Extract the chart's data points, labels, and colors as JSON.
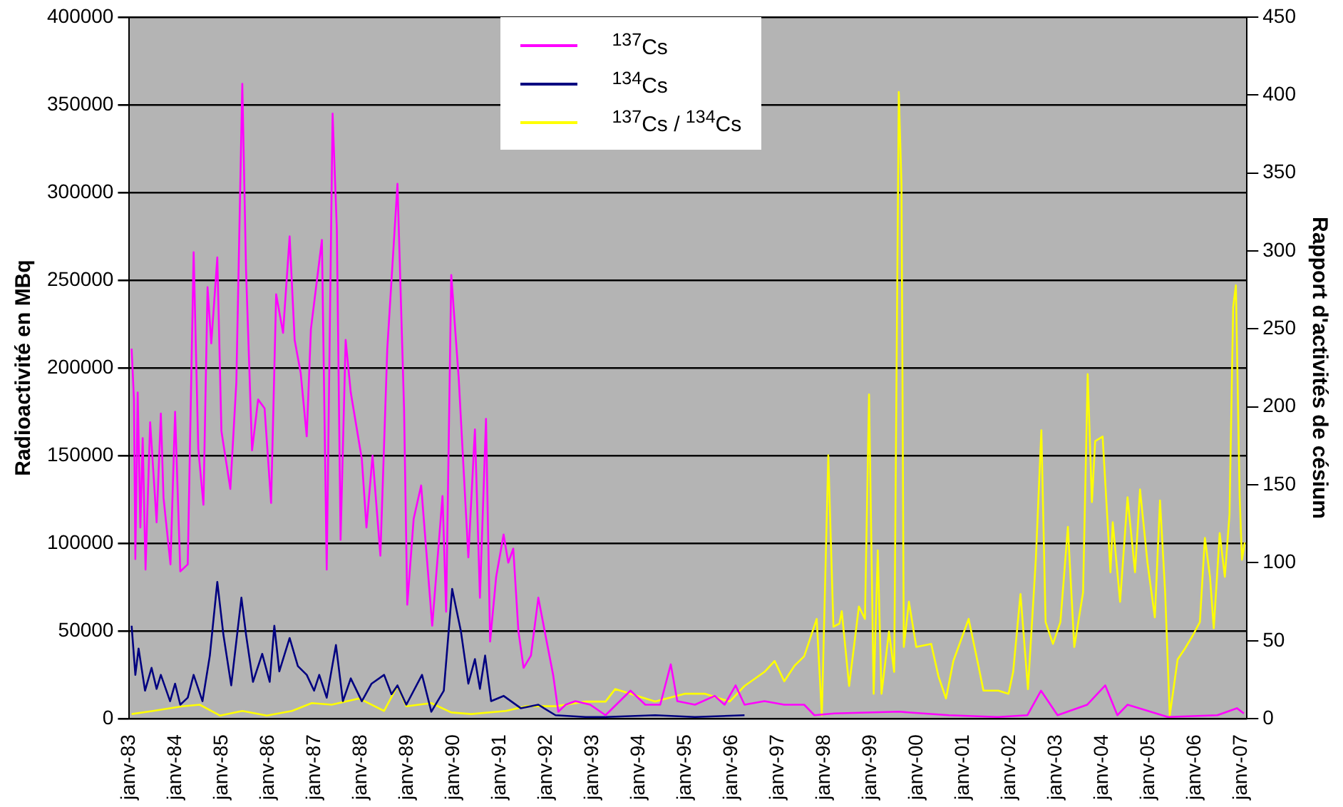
{
  "chart_data": {
    "type": "line",
    "ylabel": "Radioactivité en MBq",
    "y2label": "Rapport d'activités de césium",
    "xlim": [
      "1983-01",
      "2007-02-17"
    ],
    "xticks": [
      {
        "value": "1983-01",
        "label": "janv-83"
      },
      {
        "value": "1984-01",
        "label": "janv-84"
      },
      {
        "value": "1985-01",
        "label": "janv-85"
      },
      {
        "value": "1986-01",
        "label": "janv-86"
      },
      {
        "value": "1987-01",
        "label": "janv-87"
      },
      {
        "value": "1988-01",
        "label": "janv-88"
      },
      {
        "value": "1989-01",
        "label": "janv-89"
      },
      {
        "value": "1990-01",
        "label": "janv-90"
      },
      {
        "value": "1991-01",
        "label": "janv-91"
      },
      {
        "value": "1992-01",
        "label": "janv-92"
      },
      {
        "value": "1993-01",
        "label": "janv-93"
      },
      {
        "value": "1994-01",
        "label": "janv-94"
      },
      {
        "value": "1995-01",
        "label": "janv-95"
      },
      {
        "value": "1996-01",
        "label": "janv-96"
      },
      {
        "value": "1997-01",
        "label": "janv-97"
      },
      {
        "value": "1998-01",
        "label": "janv-98"
      },
      {
        "value": "1999-01",
        "label": "janv-99"
      },
      {
        "value": "2000-01",
        "label": "janv-00"
      },
      {
        "value": "2001-01",
        "label": "janv-01"
      },
      {
        "value": "2002-01",
        "label": "janv-02"
      },
      {
        "value": "2003-01",
        "label": "janv-03"
      },
      {
        "value": "2004-01",
        "label": "janv-04"
      },
      {
        "value": "2005-01",
        "label": "janv-05"
      },
      {
        "value": "2006-01",
        "label": "janv-06"
      },
      {
        "value": "2007-01",
        "label": "janv-07"
      }
    ],
    "ylim": [
      0,
      400000
    ],
    "yticks": [
      0,
      50000,
      100000,
      150000,
      200000,
      250000,
      300000,
      350000,
      400000
    ],
    "y2lim": [
      0,
      450
    ],
    "y2ticks": [
      0,
      50,
      100,
      150,
      200,
      250,
      300,
      350,
      400,
      450
    ],
    "grid": "y",
    "legend": "top",
    "series": [
      {
        "name": "$^{137}$Cs",
        "color": "#ff00ff",
        "x": [
          "1983-01-19",
          "1983-02-07",
          "1983-02-18",
          "1983-03-06",
          "1983-03-27",
          "1983-04-15",
          "1983-05-07",
          "1983-06-13",
          "1983-08-03",
          "1983-09-06",
          "1983-09-27",
          "1983-11-21",
          "1983-12-27",
          "1984-02-07",
          "1984-04-05",
          "1984-05-21",
          "1984-06-27",
          "1984-08-07",
          "1984-09-09",
          "1984-10-08",
          "1984-11-25",
          "1984-12-27",
          "1985-03-06",
          "1985-04-23",
          "1985-06-09",
          "1985-07-08",
          "1985-08-25",
          "1985-10-12",
          "1985-12-02",
          "1986-01-23",
          "1986-03-02",
          "1986-04-26",
          "1986-06-17",
          "1986-07-26",
          "1986-09-13",
          "1986-10-30",
          "1986-12-02",
          "1987-02-28",
          "1987-04-05",
          "1987-05-21",
          "1987-06-24",
          "1987-07-23",
          "1987-09-02",
          "1987-10-12",
          "1988-01-08",
          "1988-02-14",
          "1988-04-01",
          "1988-06-02",
          "1988-07-26",
          "1988-10-15",
          "1988-12-06",
          "1989-01-01",
          "1989-02-21",
          "1989-04-19",
          "1989-07-15",
          "1989-10-05",
          "1989-11-03",
          "1989-12-13",
          "1990-02-11",
          "1990-04-26",
          "1990-06-17",
          "1990-07-26",
          "1990-09-13",
          "1990-10-15",
          "1990-12-02",
          "1991-01-30",
          "1991-03-06",
          "1991-04-15",
          "1991-05-25",
          "1991-07-05",
          "1991-09-02",
          "1991-10-30",
          "1991-12-27",
          "1992-02-25",
          "1992-04-05",
          "1992-06-02",
          "1992-08-18",
          "1992-12-13",
          "1993-04-12",
          "1993-10-26",
          "1994-02-21",
          "1994-06-17",
          "1994-09-09",
          "1994-10-30",
          "1995-03-17",
          "1995-08-21",
          "1995-11-07",
          "1996-02-03",
          "1996-04-12",
          "1996-09-17",
          "1997-02-21",
          "1997-07-26",
          "1997-10-15",
          "1998-03-20",
          "1999-08-14",
          "2000-09-09",
          "2001-10-01",
          "2002-05-21",
          "2002-09-06",
          "2003-01-15",
          "2003-09-06",
          "2004-01-26",
          "2004-04-30",
          "2004-07-19",
          "2005-06-02",
          "2006-06-27",
          "2006-11-29",
          "2007-01-23"
        ],
        "values": [
          211000,
          182000,
          91000,
          186000,
          109000,
          160000,
          85000,
          169000,
          112000,
          174000,
          126000,
          88000,
          175000,
          84000,
          88000,
          266000,
          154000,
          122000,
          246000,
          214000,
          263000,
          164000,
          131000,
          192000,
          362000,
          256000,
          153000,
          182000,
          177000,
          123000,
          242000,
          220000,
          275000,
          216000,
          197000,
          161000,
          222000,
          273000,
          85000,
          345000,
          279000,
          102000,
          216000,
          186000,
          148000,
          109000,
          150000,
          93000,
          211000,
          305000,
          177000,
          65000,
          114000,
          133000,
          53000,
          127000,
          61000,
          253000,
          194000,
          92000,
          165000,
          69000,
          171000,
          44000,
          81000,
          105000,
          89000,
          97000,
          50000,
          29000,
          36000,
          69000,
          47000,
          25000,
          4000,
          8000,
          10000,
          8000,
          2000,
          16000,
          8000,
          8000,
          31000,
          10000,
          8000,
          13000,
          8000,
          19000,
          8000,
          10000,
          8000,
          8000,
          2000,
          3000,
          4000,
          2000,
          1000,
          2000,
          16000,
          2000,
          8000,
          19000,
          2000,
          8000,
          1000,
          2000,
          6000,
          3000
        ]
      },
      {
        "name": "$^{134}$Cs",
        "color": "#000080",
        "x": [
          "1983-01-19",
          "1983-02-18",
          "1983-03-13",
          "1983-05-03",
          "1983-06-24",
          "1983-08-03",
          "1983-09-06",
          "1983-11-18",
          "1983-12-27",
          "1984-02-07",
          "1984-04-05",
          "1984-05-21",
          "1984-07-30",
          "1984-09-27",
          "1984-11-25",
          "1985-01-12",
          "1985-03-13",
          "1985-06-02",
          "1985-07-08",
          "1985-09-02",
          "1985-11-14",
          "1986-01-12",
          "1986-02-18",
          "1986-03-27",
          "1986-06-17",
          "1986-08-21",
          "1986-10-30",
          "1986-12-27",
          "1987-02-07",
          "1987-04-05",
          "1987-06-17",
          "1987-08-11",
          "1987-10-12",
          "1988-01-08",
          "1988-03-24",
          "1988-07-01",
          "1988-08-29",
          "1988-10-15",
          "1988-12-24",
          "1989-04-26",
          "1989-07-08",
          "1989-10-15",
          "1989-12-20",
          "1990-02-28",
          "1990-04-26",
          "1990-06-17",
          "1990-07-26",
          "1990-09-06",
          "1990-10-23",
          "1991-01-30",
          "1991-06-13",
          "1991-10-30",
          "1992-03-13",
          "1992-11-07",
          "1993-04-12",
          "1994-05-07",
          "1995-03-17",
          "1996-04-12"
        ],
        "values": [
          53000,
          25000,
          40000,
          16000,
          29000,
          17000,
          25000,
          10000,
          20000,
          8000,
          12000,
          25000,
          10000,
          36000,
          78000,
          48000,
          19000,
          69000,
          48000,
          21000,
          37000,
          21000,
          53000,
          27000,
          46000,
          30000,
          25000,
          16000,
          25000,
          12000,
          42000,
          10000,
          23000,
          10000,
          20000,
          25000,
          14000,
          19000,
          8000,
          25000,
          4000,
          16000,
          74000,
          50000,
          20000,
          34000,
          17000,
          36000,
          10000,
          13000,
          6000,
          8000,
          2000,
          1000,
          1000,
          2000,
          1000,
          2000
        ]
      },
      {
        "name": "$^{137}$Cs / $^{134}$Cs",
        "color": "#ffff00",
        "axis": "y2",
        "x": [
          "1983-01-19",
          "1983-07-05",
          "1984-02-25",
          "1984-07-08",
          "1984-12-17",
          "1985-06-09",
          "1985-12-20",
          "1986-07-05",
          "1986-12-09",
          "1987-05-14",
          "1987-12-17",
          "1988-07-01",
          "1988-10-15",
          "1988-12-24",
          "1989-07-08",
          "1989-12-13",
          "1990-05-18",
          "1991-02-18",
          "1991-07-23",
          "1992-03-13",
          "1992-11-07",
          "1993-04-12",
          "1993-06-27",
          "1993-12-02",
          "1994-05-07",
          "1994-12-27",
          "1995-06-06",
          "1995-12-17",
          "1996-04-12",
          "1996-09-17",
          "1996-12-06",
          "1997-02-21",
          "1997-05-11",
          "1997-07-26",
          "1997-11-03",
          "1997-12-13",
          "1998-02-03",
          "1998-03-13",
          "1998-04-30",
          "1998-05-18",
          "1998-07-15",
          "1998-10-01",
          "1998-11-18",
          "1998-12-20",
          "1999-01-26",
          "1999-02-28",
          "1999-03-27",
          "1999-05-25",
          "1999-07-05",
          "1999-08-11",
          "1999-09-02",
          "1999-09-20",
          "1999-10-30",
          "1999-12-27",
          "2000-04-23",
          "2000-06-20",
          "2000-08-18",
          "2000-10-15",
          "2001-02-14",
          "2001-04-30",
          "2001-06-09",
          "2001-10-05",
          "2001-12-24",
          "2002-01-30",
          "2002-03-27",
          "2002-05-25",
          "2002-07-26",
          "2002-09-09",
          "2002-10-12",
          "2002-12-09",
          "2003-02-07",
          "2003-04-05",
          "2003-05-25",
          "2003-08-03",
          "2003-09-09",
          "2003-10-12",
          "2003-11-07",
          "2004-01-05",
          "2004-03-06",
          "2004-03-24",
          "2004-05-21",
          "2004-07-19",
          "2004-09-17",
          "2004-10-26",
          "2004-12-24",
          "2005-02-21",
          "2005-04-01",
          "2005-05-11",
          "2005-06-17",
          "2005-08-18",
          "2005-10-15",
          "2005-12-13",
          "2006-02-11",
          "2006-03-20",
          "2006-04-30",
          "2006-05-29",
          "2006-07-15",
          "2006-08-25",
          "2006-10-01",
          "2006-10-30",
          "2006-11-21",
          "2006-12-20",
          "2007-01-08",
          "2007-01-30"
        ],
        "values": [
          3,
          5,
          8,
          9,
          2,
          5,
          2,
          5,
          10,
          9,
          13,
          5,
          21,
          8,
          10,
          4,
          3,
          5,
          8,
          8,
          11,
          11,
          19,
          15,
          11,
          16,
          16,
          11,
          21,
          30,
          37,
          24,
          34,
          40,
          64,
          2,
          169,
          59,
          61,
          69,
          21,
          72,
          64,
          208,
          16,
          108,
          16,
          56,
          30,
          402,
          342,
          46,
          75,
          46,
          48,
          27,
          13,
          37,
          64,
          34,
          18,
          18,
          16,
          30,
          80,
          19,
          102,
          185,
          62,
          48,
          62,
          123,
          46,
          81,
          221,
          139,
          178,
          181,
          94,
          126,
          75,
          142,
          94,
          147,
          100,
          65,
          140,
          81,
          2,
          38,
          45,
          53,
          62,
          116,
          91,
          58,
          119,
          91,
          131,
          264,
          278,
          143,
          102,
          113
        ]
      }
    ]
  }
}
